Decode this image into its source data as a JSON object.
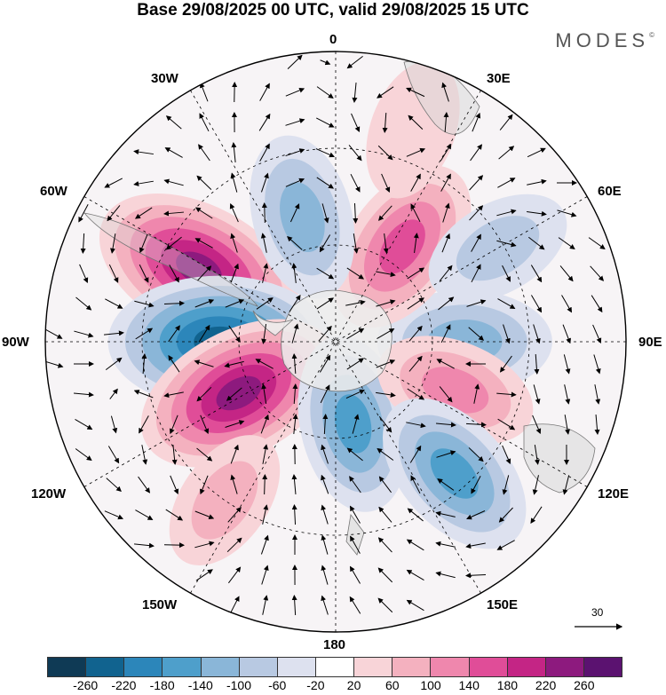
{
  "title": "Base 29/08/2025 00 UTC, valid 29/08/2025 15 UTC",
  "brand": "MODES",
  "brand_mark": "©",
  "longitude_labels": {
    "north": "0",
    "nne": "30E",
    "ene": "60E",
    "east": "90E",
    "ese": "120E",
    "sse": "150E",
    "south": "180",
    "ssw": "150W",
    "wsw": "120W",
    "west": "90W",
    "wnw": "60W",
    "nnw": "30W"
  },
  "reference_vector": "30",
  "colorbar": {
    "colors": [
      "#0f3a55",
      "#11638f",
      "#2c86ba",
      "#4e9fcb",
      "#8ab6d8",
      "#b8c9e2",
      "#dde1ef",
      "#ffffff",
      "#f8d4d8",
      "#f4b1bf",
      "#ef87ad",
      "#e04d98",
      "#c42585",
      "#8d1a7e",
      "#5b1270"
    ],
    "tick_labels": [
      "-260",
      "-220",
      "-180",
      "-140",
      "-100",
      "-60",
      "-20",
      "20",
      "60",
      "100",
      "140",
      "180",
      "220",
      "260"
    ]
  },
  "anomaly_centers": [
    {
      "lon": -62,
      "lat_from_pole": 48,
      "value": 250,
      "label": "positive"
    },
    {
      "lon": -90,
      "lat_from_pole": 36,
      "value": -270,
      "label": "negative"
    },
    {
      "lon": -118,
      "lat_from_pole": 34,
      "value": 240,
      "label": "positive"
    },
    {
      "lon": 168,
      "lat_from_pole": 26,
      "value": -160,
      "label": "negative"
    },
    {
      "lon": 90,
      "lat_from_pole": 40,
      "value": -150,
      "label": "negative"
    },
    {
      "lon": 35,
      "lat_from_pole": 36,
      "value": 170,
      "label": "positive"
    },
    {
      "lon": 112,
      "lat_from_pole": 40,
      "value": 120,
      "label": "positive"
    },
    {
      "lon": 138,
      "lat_from_pole": 55,
      "value": -160,
      "label": "negative"
    },
    {
      "lon": 60,
      "lat_from_pole": 58,
      "value": -90,
      "label": "negative"
    },
    {
      "lon": -15,
      "lat_from_pole": 40,
      "value": -130,
      "label": "negative"
    },
    {
      "lon": -145,
      "lat_from_pole": 60,
      "value": 80,
      "label": "positive"
    },
    {
      "lon": 20,
      "lat_from_pole": 70,
      "value": 70,
      "label": "positive"
    }
  ]
}
